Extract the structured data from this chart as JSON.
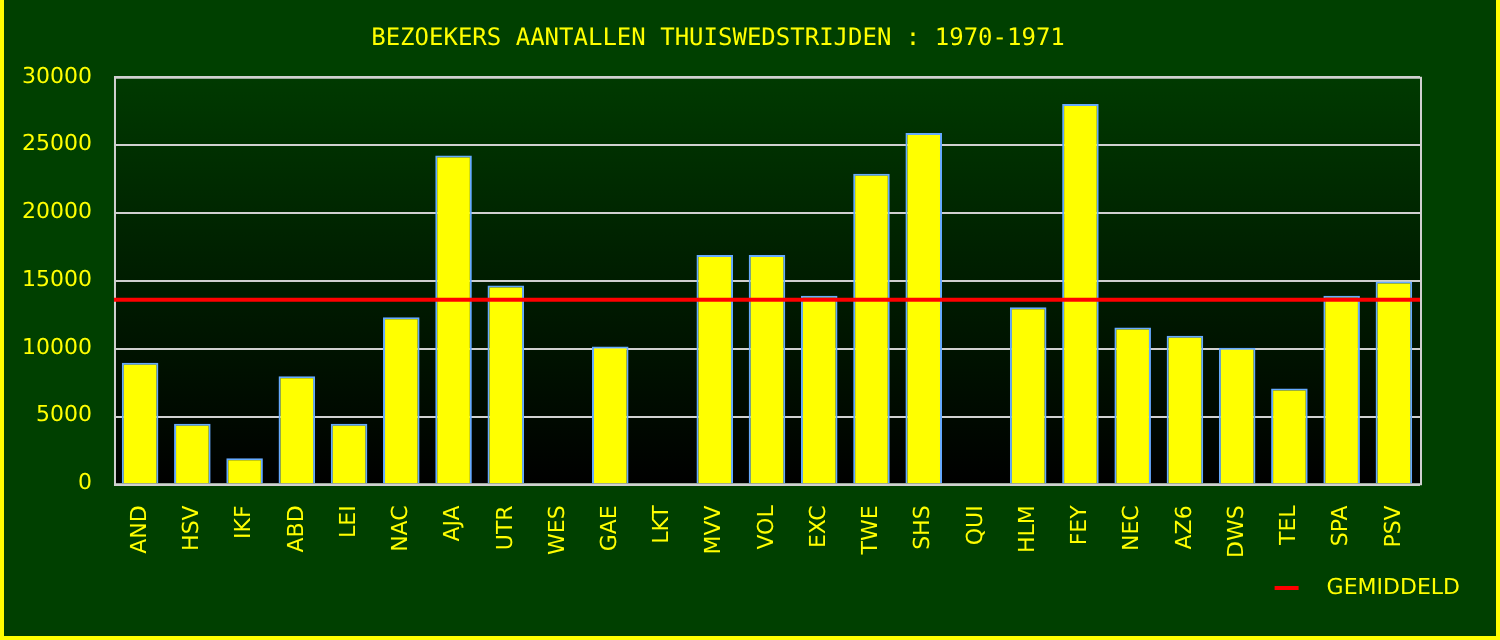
{
  "chart_data": {
    "type": "bar",
    "title": "BEZOEKERS AANTALLEN THUISWEDSTRIJDEN : 1970-1971",
    "categories": [
      "AND",
      "HSV",
      "IKF",
      "ABD",
      "LEI",
      "NAC",
      "AJA",
      "UTR",
      "WES",
      "GAE",
      "LKT",
      "MVV",
      "VOL",
      "EXC",
      "TWE",
      "SHS",
      "QUI",
      "HLM",
      "FEY",
      "NEC",
      "AZ6",
      "DWS",
      "TEL",
      "SPA",
      "PSV"
    ],
    "values": [
      8900,
      4400,
      1850,
      7900,
      4400,
      12250,
      24200,
      14600,
      null,
      10100,
      null,
      16850,
      16850,
      13850,
      22850,
      25850,
      null,
      13000,
      28000,
      11500,
      10900,
      10000,
      7000,
      13850,
      14900
    ],
    "color": "#ffff00",
    "ylim": [
      0,
      30000
    ],
    "yticks": [
      0,
      5000,
      10000,
      15000,
      20000,
      25000,
      30000
    ],
    "grid": "y",
    "ref_lines": [
      {
        "axis": "y",
        "value": 13550,
        "label": "GEMIDDELD",
        "color": "#ff0000"
      }
    ],
    "legend": "bottom right"
  }
}
